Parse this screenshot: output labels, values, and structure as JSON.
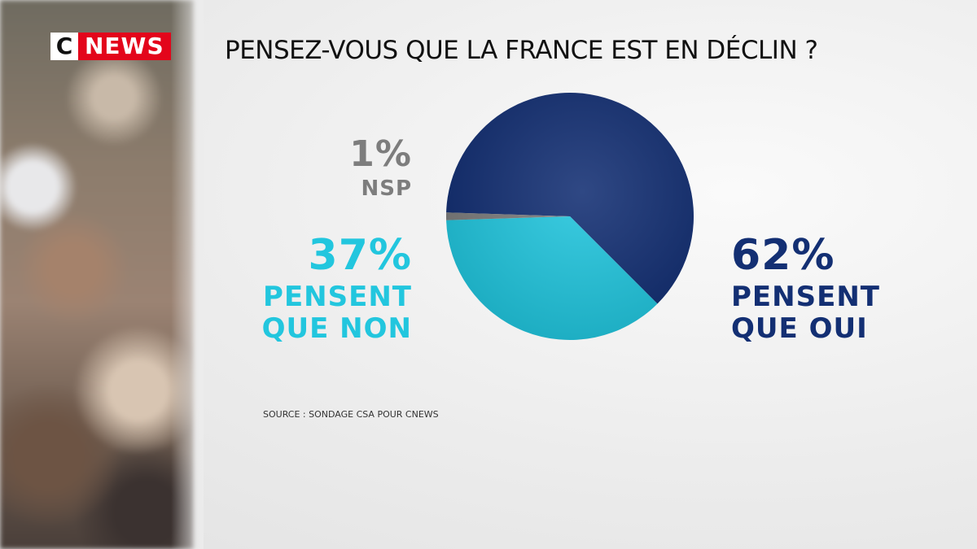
{
  "logo": {
    "c": "C",
    "news": "NEWS"
  },
  "source": "SOURCE : SONDAGE CSA POUR CNEWS",
  "chart_data": {
    "type": "pie",
    "title": "PENSEZ-VOUS QUE LA FRANCE EST EN DÉCLIN ?",
    "categories": [
      "PENSENT QUE OUI",
      "PENSENT QUE NON",
      "NSP"
    ],
    "values": [
      62,
      37,
      1
    ],
    "value_labels": [
      "62%",
      "37%",
      "1%"
    ],
    "colors": [
      "#132f73",
      "#22c6de",
      "#7d7d7d"
    ]
  }
}
